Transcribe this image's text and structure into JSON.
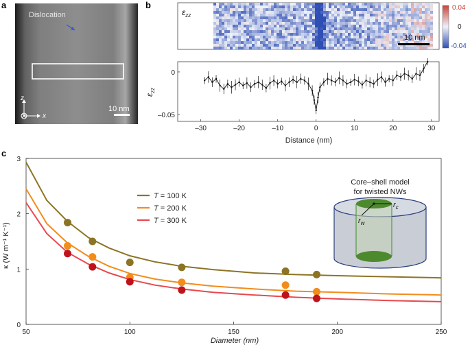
{
  "panel_a": {
    "letter": "a",
    "label_dislocation": "Dislocation",
    "scalebar": "10 nm",
    "axis_z": "z",
    "axis_x": "x"
  },
  "panel_b": {
    "letter": "b",
    "map_label": "ε",
    "map_label_sub": "zz",
    "map_scalebar": "10 nm",
    "colorbar_ticks": [
      "0.04",
      "0",
      "-0.04"
    ],
    "colors": {
      "neg": "#2f4fb5",
      "zero": "#eef1f8",
      "pos": "#c7443a"
    }
  },
  "panel_c": {
    "letter": "c",
    "model_title_1": "Core–shell model",
    "model_title_2": "for twisted NWs",
    "rc_label": "r",
    "rc_sub": "c",
    "rw_label": "r",
    "rw_sub": "w"
  },
  "chart_data": [
    {
      "type": "line",
      "ylabel": "ε",
      "ylabel_sub": "zz",
      "xlabel": "Distance (nm)",
      "xlim": [
        -36,
        32
      ],
      "ylim": [
        -0.058,
        0.012
      ],
      "xticks": [
        -30,
        -20,
        -10,
        0,
        10,
        20,
        30
      ],
      "yticks": [
        0,
        -0.05
      ],
      "ytick_labels": [
        "0",
        "–0.05"
      ],
      "x": [
        -29.0,
        -28.0,
        -27.0,
        -26.0,
        -25.0,
        -24.0,
        -23.0,
        -22.0,
        -21.0,
        -20.0,
        -19.0,
        -18.0,
        -17.0,
        -16.0,
        -15.0,
        -14.0,
        -13.0,
        -12.0,
        -11.0,
        -10.0,
        -9.0,
        -8.0,
        -7.0,
        -6.0,
        -5.0,
        -4.0,
        -3.0,
        -2.0,
        -1.0,
        -0.5,
        0.0,
        0.5,
        1.0,
        2.0,
        3.0,
        4.0,
        5.0,
        6.0,
        7.0,
        8.0,
        9.0,
        10.0,
        11.0,
        12.0,
        13.0,
        14.0,
        15.0,
        16.0,
        17.0,
        18.0,
        19.0,
        20.0,
        21.0,
        22.0,
        23.0,
        24.0,
        25.0,
        26.0,
        27.0,
        28.0,
        29.0
      ],
      "y": [
        -0.01,
        -0.006,
        -0.012,
        -0.008,
        -0.016,
        -0.02,
        -0.014,
        -0.018,
        -0.015,
        -0.012,
        -0.016,
        -0.013,
        -0.018,
        -0.014,
        -0.012,
        -0.015,
        -0.019,
        -0.013,
        -0.01,
        -0.014,
        -0.011,
        -0.016,
        -0.012,
        -0.009,
        -0.012,
        -0.008,
        -0.01,
        -0.014,
        -0.022,
        -0.033,
        -0.045,
        -0.03,
        -0.018,
        -0.012,
        -0.008,
        -0.01,
        -0.012,
        -0.007,
        -0.01,
        -0.014,
        -0.012,
        -0.009,
        -0.011,
        -0.015,
        -0.01,
        -0.012,
        -0.014,
        -0.009,
        -0.006,
        -0.012,
        -0.008,
        -0.01,
        -0.004,
        -0.006,
        -0.002,
        -0.004,
        -0.008,
        -0.002,
        -0.004,
        0.004,
        0.012
      ],
      "yerr": 0.006
    },
    {
      "type": "scatter",
      "xlabel": "Diameter (nm)",
      "ylabel": "κ (W m⁻¹ K⁻¹)",
      "xlim": [
        50,
        250
      ],
      "ylim": [
        0,
        3
      ],
      "xticks": [
        50,
        100,
        150,
        200,
        250
      ],
      "yticks": [
        0,
        1,
        2,
        3
      ],
      "legend_position": "upper-center",
      "series": [
        {
          "name": "T = 100 K",
          "name_italic": "T",
          "name_rest": " = 100 K",
          "color": "#8c7424",
          "points_x": [
            70,
            82,
            100,
            125,
            175,
            190
          ],
          "points_y": [
            1.84,
            1.5,
            1.12,
            1.03,
            0.96,
            0.9
          ],
          "curve_x": [
            50,
            60,
            70,
            80,
            90,
            100,
            112,
            125,
            140,
            160,
            180,
            200,
            225,
            250
          ],
          "curve_y": [
            2.93,
            2.24,
            1.86,
            1.57,
            1.38,
            1.24,
            1.13,
            1.05,
            0.99,
            0.93,
            0.9,
            0.88,
            0.86,
            0.84
          ]
        },
        {
          "name": "T = 200 K",
          "name_italic": "T",
          "name_rest": " = 200 K",
          "color": "#f28c1c",
          "points_x": [
            70,
            82,
            100,
            125,
            175,
            190
          ],
          "points_y": [
            1.42,
            1.22,
            0.85,
            0.76,
            0.71,
            0.59
          ],
          "curve_x": [
            50,
            60,
            70,
            80,
            90,
            100,
            112,
            125,
            140,
            160,
            180,
            200,
            225,
            250
          ],
          "curve_y": [
            2.45,
            1.82,
            1.47,
            1.23,
            1.05,
            0.92,
            0.82,
            0.75,
            0.69,
            0.64,
            0.6,
            0.58,
            0.55,
            0.53
          ]
        },
        {
          "name": "T = 300 K",
          "name_italic": "T",
          "name_rest": " = 300 K",
          "color": "#e8484e",
          "points_x": [
            70,
            82,
            100,
            125,
            175,
            190
          ],
          "points_y": [
            1.28,
            1.04,
            0.77,
            0.62,
            0.53,
            0.47
          ],
          "curve_x": [
            50,
            60,
            70,
            80,
            90,
            100,
            112,
            125,
            140,
            160,
            180,
            200,
            225,
            250
          ],
          "curve_y": [
            2.2,
            1.64,
            1.3,
            1.09,
            0.93,
            0.81,
            0.71,
            0.64,
            0.58,
            0.53,
            0.49,
            0.46,
            0.43,
            0.41
          ]
        }
      ],
      "point_colors": [
        {
          "series": 0,
          "fill": "#8c7424"
        },
        {
          "series": 1,
          "fill": "#f28c1c"
        },
        {
          "series": 2,
          "fill": "#c0121a"
        }
      ]
    }
  ]
}
